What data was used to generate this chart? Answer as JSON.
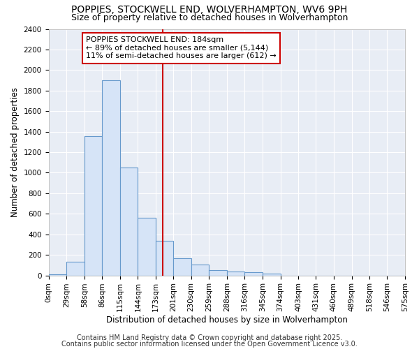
{
  "title1": "POPPIES, STOCKWELL END, WOLVERHAMPTON, WV6 9PH",
  "title2": "Size of property relative to detached houses in Wolverhampton",
  "xlabel": "Distribution of detached houses by size in Wolverhampton",
  "ylabel": "Number of detached properties",
  "bin_edges": [
    0,
    29,
    58,
    86,
    115,
    144,
    173,
    201,
    230,
    259,
    288,
    316,
    345,
    374,
    403,
    431,
    460,
    489,
    518,
    546,
    575
  ],
  "bar_heights": [
    10,
    130,
    1360,
    1900,
    1050,
    560,
    340,
    165,
    105,
    55,
    35,
    30,
    20,
    0,
    0,
    0,
    0,
    0,
    0,
    0
  ],
  "bar_color": "#d6e4f7",
  "bar_edge_color": "#6699cc",
  "property_size": 184,
  "vline_color": "#cc0000",
  "annotation_text": "POPPIES STOCKWELL END: 184sqm\n← 89% of detached houses are smaller (5,144)\n11% of semi-detached houses are larger (612) →",
  "annotation_box_color": "#ffffff",
  "annotation_box_edge": "#cc0000",
  "ylim": [
    0,
    2400
  ],
  "yticks": [
    0,
    200,
    400,
    600,
    800,
    1000,
    1200,
    1400,
    1600,
    1800,
    2000,
    2200,
    2400
  ],
  "tick_labels": [
    "0sqm",
    "29sqm",
    "58sqm",
    "86sqm",
    "115sqm",
    "144sqm",
    "173sqm",
    "201sqm",
    "230sqm",
    "259sqm",
    "288sqm",
    "316sqm",
    "345sqm",
    "374sqm",
    "403sqm",
    "431sqm",
    "460sqm",
    "489sqm",
    "518sqm",
    "546sqm",
    "575sqm"
  ],
  "background_color": "#ffffff",
  "plot_bg_color": "#e8edf5",
  "footer1": "Contains HM Land Registry data © Crown copyright and database right 2025.",
  "footer2": "Contains public sector information licensed under the Open Government Licence v3.0.",
  "grid_color": "#ffffff",
  "title1_fontsize": 10,
  "title2_fontsize": 9,
  "axis_label_fontsize": 8.5,
  "tick_fontsize": 7.5,
  "footer_fontsize": 7,
  "annotation_fontsize": 8
}
